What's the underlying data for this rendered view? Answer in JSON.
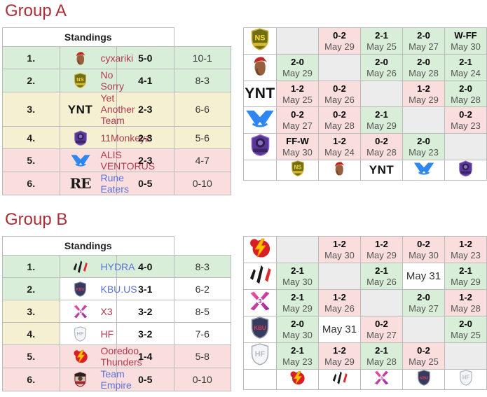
{
  "colors": {
    "heading": "#a93038",
    "link_blue": "#5b74d8",
    "link_red": "#b1394f",
    "bg_up": "#d8eed8",
    "bg_stay": "#f5f0d1",
    "bg_down": "#fadddd",
    "bg_self": "#ececec",
    "border": "#bbbbbb",
    "score_text": "#000000",
    "date_text": "#555555"
  },
  "teams": {
    "cyxariki": {
      "name": "cyxariki",
      "link": "red"
    },
    "nosorry": {
      "name": "No Sorry",
      "link": "red"
    },
    "ynt": {
      "name": "Yet Another Team",
      "link": "red"
    },
    "monkeyz": {
      "name": "11Monkeyz",
      "link": "red"
    },
    "alis": {
      "name": "ALIS VENTORUS",
      "link": "red"
    },
    "runeeaters": {
      "name": "Rune Eaters",
      "link": "blue"
    },
    "hydra": {
      "name": "HYDRA",
      "link": "blue"
    },
    "kbu": {
      "name": "KBU.US",
      "link": "blue"
    },
    "x3": {
      "name": "X3",
      "link": "red"
    },
    "hf": {
      "name": "HF",
      "link": "red"
    },
    "ooredoo": {
      "name": "Ooredoo Thunders",
      "link": "red"
    },
    "empire": {
      "name": "Team Empire",
      "link": "blue"
    }
  },
  "icons": {
    "cyxariki": {
      "kind": "face",
      "cap": "#c32822",
      "skin": "#96603f",
      "shade": "#6e4026"
    },
    "nosorry": {
      "kind": "shield",
      "label": "NS",
      "bg": "#6e6e14",
      "stroke": "#c9a72c",
      "text_color": "#ffd83e",
      "banner": "#d9b832"
    },
    "ynt": {
      "kind": "text",
      "label": "YNT",
      "color": "#111111",
      "serif": false
    },
    "monkeyz": {
      "kind": "badge",
      "bg": "#5a3796",
      "stroke": "#8a65c9",
      "inner": "#2e1d52",
      "accent": "#9b7fd4",
      "banner": "#3a2566"
    },
    "alis": {
      "kind": "mlogo",
      "color": "#2e86f0"
    },
    "runeeaters": {
      "kind": "text",
      "label": "RE",
      "color": "#1a1a1a",
      "serif": true
    },
    "hydra": {
      "kind": "slashes",
      "dark": "#1a1a1a",
      "red": "#e02a2a"
    },
    "kbu": {
      "kind": "shield",
      "label": "KBU",
      "bg": "#363a5e",
      "stroke": "#8890a8",
      "text_color": "#d84055"
    },
    "x3": {
      "kind": "xlogo",
      "c1": "#ff4f9e",
      "c2": "#8e2da8"
    },
    "hf": {
      "kind": "shield",
      "label": "HF",
      "bg": "#f4f5f7",
      "stroke": "#aab0bc",
      "text_color": "#b6bcc8"
    },
    "ooredoo": {
      "kind": "bolt",
      "bg": "#d81f26",
      "bolt": "#ffc400",
      "bolt_stroke": "#f08c00"
    },
    "empire": {
      "kind": "crest",
      "bg": "#26211f",
      "stroke": "#8b1e24",
      "inner": "#cfc4b0",
      "blob": "#5d3a28",
      "banner": "#a6212b"
    }
  },
  "groups": [
    {
      "title": "Group A",
      "standings_header": "Standings",
      "standings": [
        {
          "place": "1.",
          "team": "cyxariki",
          "record": "5-0",
          "games": "10-1",
          "row_bg": "up",
          "place_bg": "up"
        },
        {
          "place": "2.",
          "team": "nosorry",
          "record": "4-1",
          "games": "8-3",
          "row_bg": "up",
          "place_bg": "up"
        },
        {
          "place": "3.",
          "team": "ynt",
          "record": "2-3",
          "games": "6-6",
          "row_bg": "stay",
          "place_bg": "stay"
        },
        {
          "place": "4.",
          "team": "monkeyz",
          "record": "2-3",
          "games": "5-6",
          "row_bg": "stay",
          "place_bg": "stay"
        },
        {
          "place": "5.",
          "team": "alis",
          "record": "2-3",
          "games": "4-7",
          "row_bg": "down",
          "place_bg": "down"
        },
        {
          "place": "6.",
          "team": "runeeaters",
          "record": "0-5",
          "games": "0-10",
          "row_bg": "down",
          "place_bg": "down"
        }
      ],
      "matrix": {
        "rows": [
          {
            "team": "nosorry",
            "cells": [
              null,
              {
                "score": "0-2",
                "date": "May 29",
                "result": "loss"
              },
              {
                "score": "2-1",
                "date": "May 25",
                "result": "win"
              },
              {
                "score": "2-0",
                "date": "May 27",
                "result": "win"
              },
              {
                "score": "W-FF",
                "date": "May 30",
                "result": "win"
              }
            ]
          },
          {
            "team": "cyxariki",
            "cells": [
              {
                "score": "2-0",
                "date": "May 29",
                "result": "win"
              },
              null,
              {
                "score": "2-0",
                "date": "May 26",
                "result": "win"
              },
              {
                "score": "2-0",
                "date": "May 28",
                "result": "win"
              },
              {
                "score": "2-1",
                "date": "May 24",
                "result": "win"
              }
            ]
          },
          {
            "team": "ynt",
            "cells": [
              {
                "score": "1-2",
                "date": "May 25",
                "result": "loss"
              },
              {
                "score": "0-2",
                "date": "May 26",
                "result": "loss"
              },
              null,
              {
                "score": "1-2",
                "date": "May 29",
                "result": "loss"
              },
              {
                "score": "2-0",
                "date": "May 28",
                "result": "win"
              }
            ]
          },
          {
            "team": "alis",
            "cells": [
              {
                "score": "0-2",
                "date": "May 27",
                "result": "loss"
              },
              {
                "score": "0-2",
                "date": "May 28",
                "result": "loss"
              },
              {
                "score": "2-1",
                "date": "May 29",
                "result": "win"
              },
              null,
              {
                "score": "0-2",
                "date": "May 23",
                "result": "loss"
              }
            ]
          },
          {
            "team": "monkeyz",
            "cells": [
              {
                "score": "FF-W",
                "date": "May 30",
                "result": "loss"
              },
              {
                "score": "1-2",
                "date": "May 24",
                "result": "loss"
              },
              {
                "score": "0-2",
                "date": "May 28",
                "result": "loss"
              },
              {
                "score": "2-0",
                "date": "May 23",
                "result": "win"
              },
              null
            ]
          }
        ],
        "footer": [
          "nosorry",
          "cyxariki",
          "ynt",
          "alis",
          "monkeyz"
        ]
      }
    },
    {
      "title": "Group B",
      "standings_header": "Standings",
      "standings": [
        {
          "place": "1.",
          "team": "hydra",
          "record": "4-0",
          "games": "8-3",
          "row_bg": "up",
          "place_bg": "up"
        },
        {
          "place": "2.",
          "team": "kbu",
          "record": "3-1",
          "games": "6-2",
          "row_bg": "none",
          "place_bg": "up"
        },
        {
          "place": "3.",
          "team": "x3",
          "record": "3-2",
          "games": "8-5",
          "row_bg": "none",
          "place_bg": "stay"
        },
        {
          "place": "4.",
          "team": "hf",
          "record": "3-2",
          "games": "7-6",
          "row_bg": "none",
          "place_bg": "stay"
        },
        {
          "place": "5.",
          "team": "ooredoo",
          "record": "1-4",
          "games": "5-8",
          "row_bg": "down",
          "place_bg": "down"
        },
        {
          "place": "6.",
          "team": "empire",
          "record": "0-5",
          "games": "0-10",
          "row_bg": "down",
          "place_bg": "down"
        }
      ],
      "matrix": {
        "rows": [
          {
            "team": "ooredoo",
            "cells": [
              null,
              {
                "score": "1-2",
                "date": "May 30",
                "result": "loss"
              },
              {
                "score": "1-2",
                "date": "May 29",
                "result": "loss"
              },
              {
                "score": "0-2",
                "date": "May 30",
                "result": "loss"
              },
              {
                "score": "1-2",
                "date": "May 23",
                "result": "loss"
              }
            ]
          },
          {
            "team": "hydra",
            "cells": [
              {
                "score": "2-1",
                "date": "May 30",
                "result": "win"
              },
              null,
              {
                "score": "2-1",
                "date": "May 26",
                "result": "win"
              },
              {
                "date": "May 31",
                "result": "upcoming"
              },
              {
                "score": "2-1",
                "date": "May 29",
                "result": "win"
              }
            ]
          },
          {
            "team": "x3",
            "cells": [
              {
                "score": "2-1",
                "date": "May 29",
                "result": "win"
              },
              {
                "score": "1-2",
                "date": "May 26",
                "result": "loss"
              },
              null,
              {
                "score": "2-0",
                "date": "May 27",
                "result": "win"
              },
              {
                "score": "1-2",
                "date": "May 28",
                "result": "loss"
              }
            ]
          },
          {
            "team": "kbu",
            "cells": [
              {
                "score": "2-0",
                "date": "May 30",
                "result": "win"
              },
              {
                "date": "May 31",
                "result": "upcoming"
              },
              {
                "score": "0-2",
                "date": "May 27",
                "result": "loss"
              },
              null,
              {
                "score": "2-0",
                "date": "May 25",
                "result": "win"
              }
            ]
          },
          {
            "team": "hf",
            "cells": [
              {
                "score": "2-1",
                "date": "May 23",
                "result": "win"
              },
              {
                "score": "1-2",
                "date": "May 29",
                "result": "loss"
              },
              {
                "score": "2-1",
                "date": "May 28",
                "result": "win"
              },
              {
                "score": "0-2",
                "date": "May 25",
                "result": "loss"
              },
              null
            ]
          }
        ],
        "footer": [
          "ooredoo",
          "hydra",
          "x3",
          "kbu",
          "hf"
        ]
      }
    }
  ]
}
